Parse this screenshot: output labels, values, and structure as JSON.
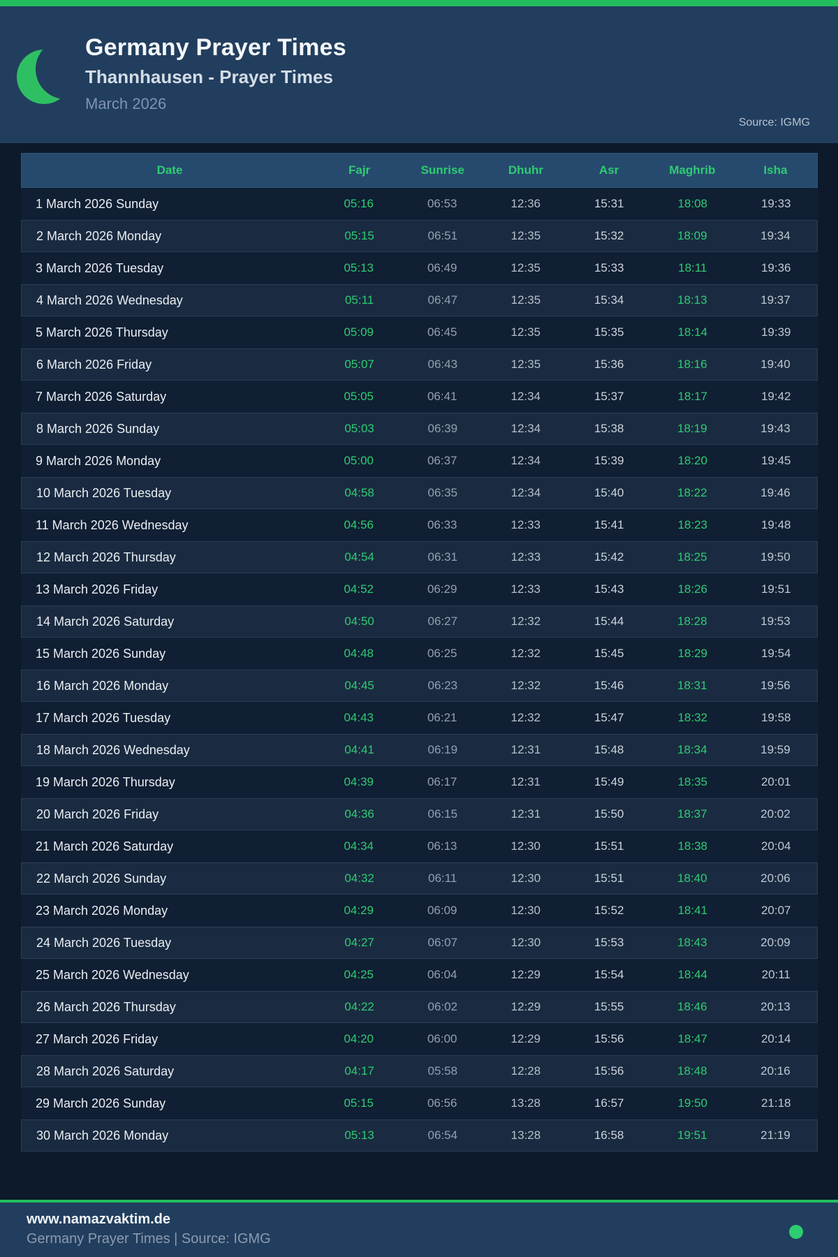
{
  "page": {
    "title": "Germany Prayer Times",
    "subtitle": "Thannhausen - Prayer Times",
    "month": "March 2026",
    "source": "Source: IGMG"
  },
  "colors": {
    "accent_green": "#2ecc71",
    "bar_green": "#24bd5e",
    "header_navy": "#223e5e",
    "page_bg": "#0c1a2b",
    "table_head_bg": "#264a6e",
    "row_even_bg": "#1a2b41",
    "row_odd_bg": "#101f33"
  },
  "table": {
    "columns": [
      "Date",
      "Fajr",
      "Sunrise",
      "Dhuhr",
      "Asr",
      "Maghrib",
      "Isha"
    ],
    "rows": [
      {
        "date": "1 March 2026 Sunday",
        "fajr": "05:16",
        "sunrise": "06:53",
        "dhuhr": "12:36",
        "asr": "15:31",
        "maghrib": "18:08",
        "isha": "19:33"
      },
      {
        "date": "2 March 2026 Monday",
        "fajr": "05:15",
        "sunrise": "06:51",
        "dhuhr": "12:35",
        "asr": "15:32",
        "maghrib": "18:09",
        "isha": "19:34"
      },
      {
        "date": "3 March 2026 Tuesday",
        "fajr": "05:13",
        "sunrise": "06:49",
        "dhuhr": "12:35",
        "asr": "15:33",
        "maghrib": "18:11",
        "isha": "19:36"
      },
      {
        "date": "4 March 2026 Wednesday",
        "fajr": "05:11",
        "sunrise": "06:47",
        "dhuhr": "12:35",
        "asr": "15:34",
        "maghrib": "18:13",
        "isha": "19:37"
      },
      {
        "date": "5 March 2026 Thursday",
        "fajr": "05:09",
        "sunrise": "06:45",
        "dhuhr": "12:35",
        "asr": "15:35",
        "maghrib": "18:14",
        "isha": "19:39"
      },
      {
        "date": "6 March 2026 Friday",
        "fajr": "05:07",
        "sunrise": "06:43",
        "dhuhr": "12:35",
        "asr": "15:36",
        "maghrib": "18:16",
        "isha": "19:40"
      },
      {
        "date": "7 March 2026 Saturday",
        "fajr": "05:05",
        "sunrise": "06:41",
        "dhuhr": "12:34",
        "asr": "15:37",
        "maghrib": "18:17",
        "isha": "19:42"
      },
      {
        "date": "8 March 2026 Sunday",
        "fajr": "05:03",
        "sunrise": "06:39",
        "dhuhr": "12:34",
        "asr": "15:38",
        "maghrib": "18:19",
        "isha": "19:43"
      },
      {
        "date": "9 March 2026 Monday",
        "fajr": "05:00",
        "sunrise": "06:37",
        "dhuhr": "12:34",
        "asr": "15:39",
        "maghrib": "18:20",
        "isha": "19:45"
      },
      {
        "date": "10 March 2026 Tuesday",
        "fajr": "04:58",
        "sunrise": "06:35",
        "dhuhr": "12:34",
        "asr": "15:40",
        "maghrib": "18:22",
        "isha": "19:46"
      },
      {
        "date": "11 March 2026 Wednesday",
        "fajr": "04:56",
        "sunrise": "06:33",
        "dhuhr": "12:33",
        "asr": "15:41",
        "maghrib": "18:23",
        "isha": "19:48"
      },
      {
        "date": "12 March 2026 Thursday",
        "fajr": "04:54",
        "sunrise": "06:31",
        "dhuhr": "12:33",
        "asr": "15:42",
        "maghrib": "18:25",
        "isha": "19:50"
      },
      {
        "date": "13 March 2026 Friday",
        "fajr": "04:52",
        "sunrise": "06:29",
        "dhuhr": "12:33",
        "asr": "15:43",
        "maghrib": "18:26",
        "isha": "19:51"
      },
      {
        "date": "14 March 2026 Saturday",
        "fajr": "04:50",
        "sunrise": "06:27",
        "dhuhr": "12:32",
        "asr": "15:44",
        "maghrib": "18:28",
        "isha": "19:53"
      },
      {
        "date": "15 March 2026 Sunday",
        "fajr": "04:48",
        "sunrise": "06:25",
        "dhuhr": "12:32",
        "asr": "15:45",
        "maghrib": "18:29",
        "isha": "19:54"
      },
      {
        "date": "16 March 2026 Monday",
        "fajr": "04:45",
        "sunrise": "06:23",
        "dhuhr": "12:32",
        "asr": "15:46",
        "maghrib": "18:31",
        "isha": "19:56"
      },
      {
        "date": "17 March 2026 Tuesday",
        "fajr": "04:43",
        "sunrise": "06:21",
        "dhuhr": "12:32",
        "asr": "15:47",
        "maghrib": "18:32",
        "isha": "19:58"
      },
      {
        "date": "18 March 2026 Wednesday",
        "fajr": "04:41",
        "sunrise": "06:19",
        "dhuhr": "12:31",
        "asr": "15:48",
        "maghrib": "18:34",
        "isha": "19:59"
      },
      {
        "date": "19 March 2026 Thursday",
        "fajr": "04:39",
        "sunrise": "06:17",
        "dhuhr": "12:31",
        "asr": "15:49",
        "maghrib": "18:35",
        "isha": "20:01"
      },
      {
        "date": "20 March 2026 Friday",
        "fajr": "04:36",
        "sunrise": "06:15",
        "dhuhr": "12:31",
        "asr": "15:50",
        "maghrib": "18:37",
        "isha": "20:02"
      },
      {
        "date": "21 March 2026 Saturday",
        "fajr": "04:34",
        "sunrise": "06:13",
        "dhuhr": "12:30",
        "asr": "15:51",
        "maghrib": "18:38",
        "isha": "20:04"
      },
      {
        "date": "22 March 2026 Sunday",
        "fajr": "04:32",
        "sunrise": "06:11",
        "dhuhr": "12:30",
        "asr": "15:51",
        "maghrib": "18:40",
        "isha": "20:06"
      },
      {
        "date": "23 March 2026 Monday",
        "fajr": "04:29",
        "sunrise": "06:09",
        "dhuhr": "12:30",
        "asr": "15:52",
        "maghrib": "18:41",
        "isha": "20:07"
      },
      {
        "date": "24 March 2026 Tuesday",
        "fajr": "04:27",
        "sunrise": "06:07",
        "dhuhr": "12:30",
        "asr": "15:53",
        "maghrib": "18:43",
        "isha": "20:09"
      },
      {
        "date": "25 March 2026 Wednesday",
        "fajr": "04:25",
        "sunrise": "06:04",
        "dhuhr": "12:29",
        "asr": "15:54",
        "maghrib": "18:44",
        "isha": "20:11"
      },
      {
        "date": "26 March 2026 Thursday",
        "fajr": "04:22",
        "sunrise": "06:02",
        "dhuhr": "12:29",
        "asr": "15:55",
        "maghrib": "18:46",
        "isha": "20:13"
      },
      {
        "date": "27 March 2026 Friday",
        "fajr": "04:20",
        "sunrise": "06:00",
        "dhuhr": "12:29",
        "asr": "15:56",
        "maghrib": "18:47",
        "isha": "20:14"
      },
      {
        "date": "28 March 2026 Saturday",
        "fajr": "04:17",
        "sunrise": "05:58",
        "dhuhr": "12:28",
        "asr": "15:56",
        "maghrib": "18:48",
        "isha": "20:16"
      },
      {
        "date": "29 March 2026 Sunday",
        "fajr": "05:15",
        "sunrise": "06:56",
        "dhuhr": "13:28",
        "asr": "16:57",
        "maghrib": "19:50",
        "isha": "21:18"
      },
      {
        "date": "30 March 2026 Monday",
        "fajr": "05:13",
        "sunrise": "06:54",
        "dhuhr": "13:28",
        "asr": "16:58",
        "maghrib": "19:51",
        "isha": "21:19"
      }
    ]
  },
  "footer": {
    "website": "www.namazvaktim.de",
    "tagline": "Germany Prayer Times | Source: IGMG"
  }
}
